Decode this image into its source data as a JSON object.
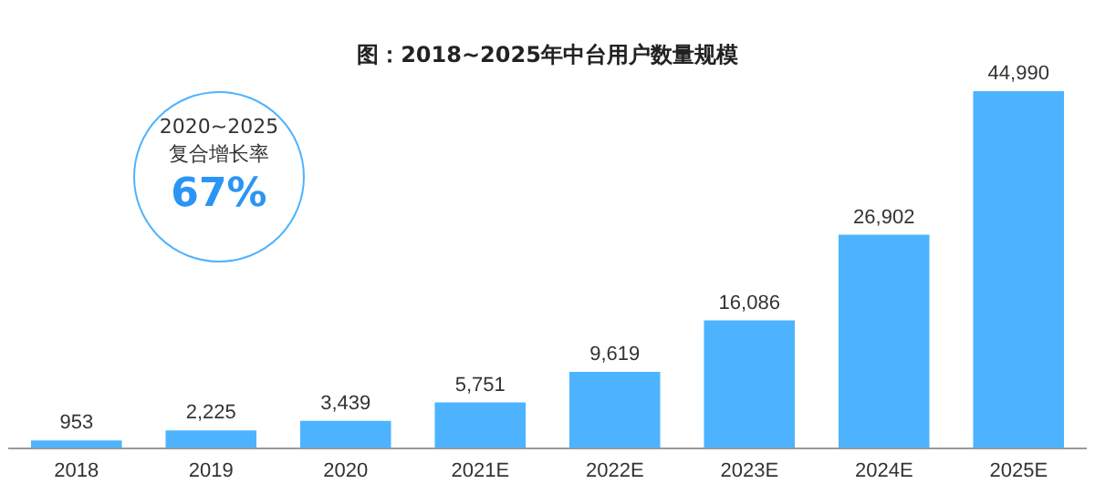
{
  "chart_data": {
    "type": "bar",
    "title": "图：2018~2025年中台用户数量规模",
    "categories": [
      "2018",
      "2019",
      "2020",
      "2021E",
      "2022E",
      "2023E",
      "2024E",
      "2025E"
    ],
    "values": [
      953,
      2225,
      3439,
      5751,
      9619,
      16086,
      26902,
      44990
    ],
    "value_labels": [
      "953",
      "2,225",
      "3,439",
      "5,751",
      "9,619",
      "16,086",
      "26,902",
      "44,990"
    ],
    "color": "#4db3ff",
    "tick_labels": "x",
    "grid": false,
    "legend": false,
    "annotations": [
      "2020~2025",
      "复合增长率",
      "67%"
    ]
  }
}
